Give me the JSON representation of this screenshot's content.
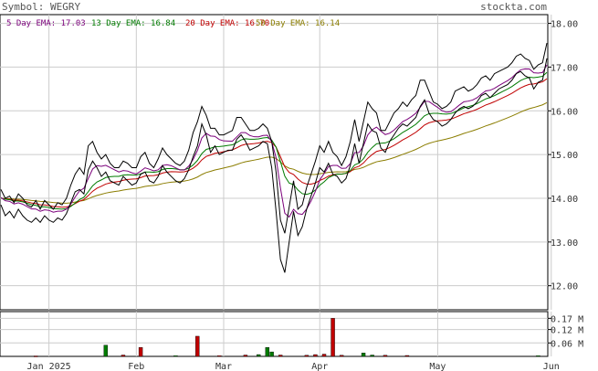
{
  "header": {
    "symbol_text": "Symbol: WEGRY",
    "site": "stockta.com"
  },
  "legend": [
    {
      "label": "5 Day EMA: 17.03",
      "color": "#7b007b"
    },
    {
      "label": "13 Day EMA: 16.84",
      "color": "#007b00"
    },
    {
      "label": "20 Day EMA: 16.70",
      "color": "#c00000"
    },
    {
      "label": "50 Day EMA: 16.14",
      "color": "#8b7d00"
    }
  ],
  "chart_data": [
    {
      "type": "line",
      "name": "price",
      "x_labels": [
        "Jan 2025",
        "Feb",
        "Mar",
        "Apr",
        "May",
        "Jun"
      ],
      "x_label_day_index": [
        11,
        31,
        51,
        73,
        100,
        126
      ],
      "yticks": [
        12.0,
        13.0,
        14.0,
        15.0,
        16.0,
        17.0,
        18.0
      ],
      "ytick_labels": [
        "12.00",
        "13.00",
        "14.00",
        "15.00",
        "16.00",
        "17.00",
        "18.00"
      ],
      "ylim": [
        11.45,
        18.2
      ],
      "grid": true,
      "series": [
        {
          "name": "Close",
          "color": "#000000",
          "values": [
            14.05,
            13.8,
            13.9,
            13.75,
            13.95,
            13.8,
            13.7,
            13.65,
            13.75,
            13.6,
            13.8,
            13.7,
            13.6,
            13.75,
            13.7,
            13.85,
            14.1,
            14.35,
            14.45,
            14.35,
            14.9,
            15.1,
            14.9,
            14.7,
            14.8,
            14.6,
            14.55,
            14.5,
            14.7,
            14.6,
            14.5,
            14.5,
            14.75,
            14.85,
            14.6,
            14.55,
            14.7,
            14.95,
            14.8,
            14.7,
            14.6,
            14.55,
            14.65,
            14.9,
            15.2,
            15.5,
            15.95,
            15.7,
            15.3,
            15.4,
            15.2,
            15.25,
            15.3,
            15.3,
            15.6,
            15.7,
            15.5,
            15.3,
            15.35,
            15.4,
            15.5,
            15.45,
            15.0,
            14.2,
            12.85,
            12.5,
            13.4,
            14.1,
            13.45,
            13.6,
            14.0,
            14.3,
            14.6,
            14.95,
            14.85,
            15.05,
            14.8,
            14.75,
            14.55,
            14.7,
            15.0,
            15.55,
            15.05,
            15.5,
            15.95,
            15.8,
            15.75,
            15.35,
            15.3,
            15.55,
            15.7,
            15.85,
            15.95,
            15.9,
            16.0,
            16.1,
            16.35,
            16.5,
            16.2,
            16.0,
            15.95,
            15.85,
            15.9,
            16.0,
            16.2,
            16.3,
            16.35,
            16.25,
            16.3,
            16.4,
            16.55,
            16.6,
            16.5,
            16.6,
            16.7,
            16.75,
            16.8,
            16.9,
            17.05,
            17.1,
            17.0,
            16.95,
            16.7,
            16.85,
            16.9,
            17.4
          ]
        },
        {
          "name": "High",
          "color": "#000000",
          "values": [
            14.2,
            14.0,
            14.05,
            13.9,
            14.1,
            14.0,
            13.85,
            13.8,
            13.95,
            13.75,
            13.95,
            13.85,
            13.75,
            13.9,
            13.85,
            14.0,
            14.3,
            14.55,
            14.7,
            14.55,
            15.2,
            15.3,
            15.05,
            14.9,
            15.0,
            14.8,
            14.7,
            14.7,
            14.85,
            14.8,
            14.7,
            14.7,
            14.95,
            15.05,
            14.8,
            14.7,
            14.9,
            15.15,
            15.0,
            14.9,
            14.8,
            14.75,
            14.85,
            15.1,
            15.5,
            15.75,
            16.1,
            15.9,
            15.6,
            15.6,
            15.45,
            15.45,
            15.5,
            15.55,
            15.85,
            15.85,
            15.7,
            15.55,
            15.55,
            15.6,
            15.7,
            15.6,
            15.3,
            14.6,
            13.5,
            13.2,
            13.8,
            14.4,
            13.75,
            13.85,
            14.25,
            14.55,
            14.85,
            15.2,
            15.05,
            15.3,
            15.05,
            14.95,
            14.75,
            14.95,
            15.3,
            15.8,
            15.3,
            15.75,
            16.2,
            16.05,
            15.95,
            15.55,
            15.55,
            15.75,
            15.95,
            16.05,
            16.2,
            16.1,
            16.25,
            16.35,
            16.7,
            16.7,
            16.45,
            16.2,
            16.15,
            16.05,
            16.1,
            16.2,
            16.45,
            16.5,
            16.55,
            16.45,
            16.5,
            16.6,
            16.75,
            16.8,
            16.7,
            16.85,
            16.9,
            16.95,
            17.0,
            17.1,
            17.25,
            17.3,
            17.2,
            17.15,
            16.95,
            17.05,
            17.1,
            17.55
          ]
        },
        {
          "name": "Low",
          "color": "#000000",
          "values": [
            13.85,
            13.6,
            13.7,
            13.55,
            13.75,
            13.6,
            13.5,
            13.45,
            13.55,
            13.45,
            13.6,
            13.5,
            13.45,
            13.55,
            13.5,
            13.65,
            13.9,
            14.15,
            14.2,
            14.1,
            14.65,
            14.85,
            14.7,
            14.5,
            14.6,
            14.4,
            14.35,
            14.3,
            14.5,
            14.4,
            14.3,
            14.35,
            14.55,
            14.6,
            14.4,
            14.35,
            14.5,
            14.75,
            14.6,
            14.5,
            14.4,
            14.35,
            14.45,
            14.65,
            14.95,
            15.2,
            15.7,
            15.45,
            15.05,
            15.2,
            15.0,
            15.05,
            15.1,
            15.1,
            15.35,
            15.45,
            15.3,
            15.1,
            15.15,
            15.2,
            15.3,
            15.25,
            14.7,
            13.7,
            12.6,
            12.3,
            13.0,
            13.7,
            13.15,
            13.35,
            13.75,
            14.05,
            14.35,
            14.7,
            14.6,
            14.8,
            14.55,
            14.5,
            14.35,
            14.45,
            14.75,
            15.25,
            14.8,
            15.25,
            15.7,
            15.55,
            15.5,
            15.15,
            15.05,
            15.3,
            15.45,
            15.6,
            15.7,
            15.65,
            15.75,
            15.85,
            16.1,
            16.25,
            15.95,
            15.8,
            15.75,
            15.65,
            15.7,
            15.8,
            15.95,
            16.05,
            16.1,
            16.05,
            16.1,
            16.2,
            16.35,
            16.4,
            16.3,
            16.4,
            16.5,
            16.55,
            16.6,
            16.7,
            16.85,
            16.9,
            16.8,
            16.75,
            16.5,
            16.65,
            16.7,
            17.2
          ]
        }
      ]
    },
    {
      "type": "bar",
      "name": "volume",
      "unit": "M",
      "yticks": [
        0.06,
        0.12,
        0.17
      ],
      "ytick_labels": [
        "0.06 M",
        "0.12 M",
        "0.17 M"
      ],
      "ylim": [
        0,
        0.2
      ],
      "bars": [
        {
          "day": 8,
          "value": 0.002,
          "up": false
        },
        {
          "day": 24,
          "value": 0.05,
          "up": true
        },
        {
          "day": 28,
          "value": 0.006,
          "up": false
        },
        {
          "day": 32,
          "value": 0.04,
          "up": false
        },
        {
          "day": 40,
          "value": 0.003,
          "up": true
        },
        {
          "day": 45,
          "value": 0.09,
          "up": false
        },
        {
          "day": 50,
          "value": 0.003,
          "up": false
        },
        {
          "day": 56,
          "value": 0.006,
          "up": false
        },
        {
          "day": 59,
          "value": 0.008,
          "up": true
        },
        {
          "day": 61,
          "value": 0.04,
          "up": true
        },
        {
          "day": 62,
          "value": 0.02,
          "up": true
        },
        {
          "day": 64,
          "value": 0.006,
          "up": false
        },
        {
          "day": 70,
          "value": 0.005,
          "up": false
        },
        {
          "day": 72,
          "value": 0.008,
          "up": false
        },
        {
          "day": 74,
          "value": 0.01,
          "up": false
        },
        {
          "day": 76,
          "value": 0.17,
          "up": false
        },
        {
          "day": 78,
          "value": 0.005,
          "up": false
        },
        {
          "day": 83,
          "value": 0.015,
          "up": true
        },
        {
          "day": 85,
          "value": 0.006,
          "up": true
        },
        {
          "day": 88,
          "value": 0.005,
          "up": false
        },
        {
          "day": 93,
          "value": 0.004,
          "up": false
        },
        {
          "day": 123,
          "value": 0.003,
          "up": true
        }
      ]
    }
  ]
}
